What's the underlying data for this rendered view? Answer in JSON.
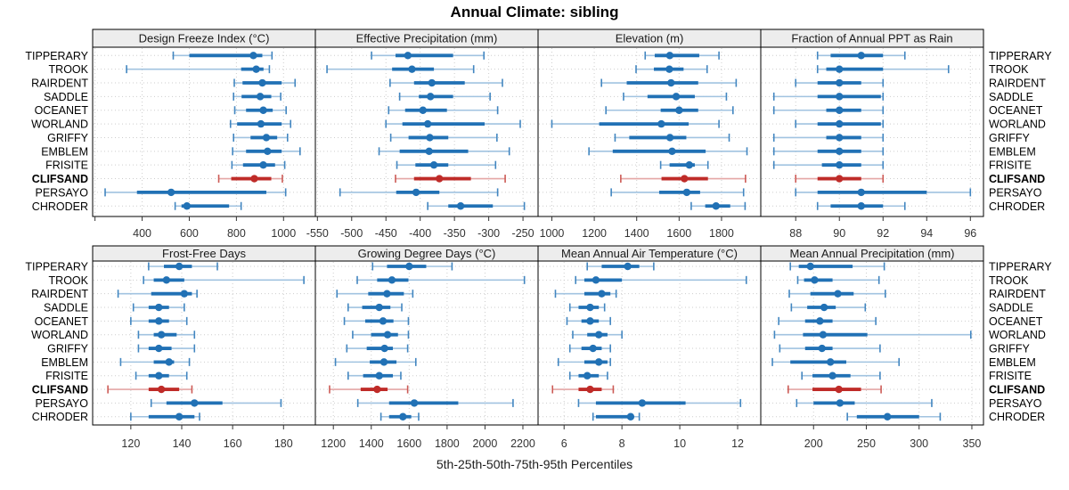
{
  "title": "Annual Climate: sibling",
  "caption": "5th-25th-50th-75th-95th Percentiles",
  "stations": [
    "TIPPERARY",
    "TROOK",
    "RAIRDENT",
    "SADDLE",
    "OCEANET",
    "WORLAND",
    "GRIFFY",
    "EMBLEM",
    "FRISITE",
    "CLIFSAND",
    "PERSAYO",
    "CHRODER"
  ],
  "highlight_station": "CLIFSAND",
  "colors": {
    "series": "#2171b5",
    "series_whisker": "#a1c3e0",
    "series_cap": "#4286c0",
    "highlight": "#bf2b28",
    "highlight_whisker": "#e4a6a5",
    "highlight_cap": "#cc5a55",
    "strip_bg": "#ededed",
    "panel_border": "#000000",
    "grid": "#cdcdcd",
    "tick_text": "#333333",
    "station_text": "#000000"
  },
  "chart_data": {
    "type": "dotplot-percentiles-trellis",
    "percentiles": [
      5,
      25,
      50,
      75,
      95
    ],
    "grid_layout": {
      "rows": 2,
      "cols": 4
    },
    "panels": [
      {
        "title": "Design Freeze Index (°C)",
        "xlim": [
          190,
          1135
        ],
        "ticks": [
          400,
          600,
          800,
          1000
        ],
        "minor_ticks": [
          200
        ],
        "series": [
          [
            532,
            600,
            872,
            910,
            951
          ],
          [
            334,
            820,
            884,
            915,
            940
          ],
          [
            791,
            826,
            910,
            992,
            1049
          ],
          [
            788,
            822,
            901,
            948,
            988
          ],
          [
            793,
            841,
            914,
            954,
            1011
          ],
          [
            775,
            803,
            904,
            992,
            1030
          ],
          [
            788,
            860,
            927,
            973,
            1017
          ],
          [
            784,
            841,
            932,
            992,
            1070
          ],
          [
            781,
            828,
            914,
            964,
            1005
          ],
          [
            725,
            778,
            876,
            948,
            995
          ],
          [
            243,
            378,
            523,
            927,
            1009
          ],
          [
            540,
            567,
            590,
            769,
            820
          ]
        ]
      },
      {
        "title": "Effective Precipitation (mm)",
        "xlim": [
          -553,
          -228
        ],
        "ticks": [
          -550,
          -500,
          -450,
          -400,
          -350,
          -300,
          -250
        ],
        "minor_ticks": [],
        "series": [
          [
            -471,
            -436,
            -418,
            -352,
            -307
          ],
          [
            -536,
            -441,
            -412,
            -380,
            -322
          ],
          [
            -444,
            -409,
            -383,
            -335,
            -280
          ],
          [
            -430,
            -402,
            -385,
            -352,
            -298
          ],
          [
            -446,
            -422,
            -396,
            -361,
            -287
          ],
          [
            -450,
            -426,
            -389,
            -306,
            -254
          ],
          [
            -443,
            -417,
            -386,
            -359,
            -288
          ],
          [
            -460,
            -430,
            -387,
            -330,
            -270
          ],
          [
            -434,
            -407,
            -380,
            -359,
            -290
          ],
          [
            -436,
            -409,
            -372,
            -326,
            -276
          ],
          [
            -517,
            -435,
            -406,
            -372,
            -287
          ],
          [
            -389,
            -359,
            -341,
            -294,
            -248
          ]
        ]
      },
      {
        "title": "Elevation (m)",
        "xlim": [
          935,
          1985
        ],
        "ticks": [
          1000,
          1200,
          1400,
          1600,
          1800
        ],
        "minor_ticks": [],
        "series": [
          [
            1440,
            1485,
            1556,
            1695,
            1788
          ],
          [
            1397,
            1481,
            1554,
            1621,
            1732
          ],
          [
            1234,
            1353,
            1562,
            1690,
            1869
          ],
          [
            1338,
            1451,
            1586,
            1674,
            1823
          ],
          [
            1255,
            1513,
            1600,
            1690,
            1854
          ],
          [
            1000,
            1223,
            1516,
            1645,
            1788
          ],
          [
            1298,
            1365,
            1557,
            1634,
            1836
          ],
          [
            1175,
            1287,
            1567,
            1725,
            1920
          ],
          [
            1513,
            1555,
            1648,
            1674,
            1736
          ],
          [
            1325,
            1517,
            1625,
            1736,
            1913
          ],
          [
            1280,
            1506,
            1636,
            1699,
            1904
          ],
          [
            1657,
            1723,
            1774,
            1841,
            1911
          ]
        ]
      },
      {
        "title": "Fraction of Annual PPT as Rain",
        "xlim": [
          86.4,
          96.6
        ],
        "ticks": [
          88,
          90,
          92,
          94,
          96
        ],
        "minor_ticks": [],
        "series": [
          [
            89.0,
            89.6,
            91.0,
            92.0,
            93.0
          ],
          [
            89.0,
            89.4,
            90.0,
            92.0,
            95.0
          ],
          [
            88.0,
            89.0,
            90.0,
            91.0,
            92.0
          ],
          [
            87.0,
            89.0,
            90.0,
            91.9,
            92.0
          ],
          [
            87.0,
            89.4,
            90.0,
            91.0,
            92.0
          ],
          [
            88.0,
            89.0,
            90.0,
            91.9,
            92.0
          ],
          [
            87.0,
            89.4,
            90.0,
            91.0,
            92.0
          ],
          [
            87.0,
            89.0,
            90.0,
            91.0,
            92.0
          ],
          [
            87.0,
            89.2,
            90.0,
            91.0,
            92.0
          ],
          [
            88.0,
            89.0,
            90.0,
            91.0,
            92.0
          ],
          [
            88.0,
            89.0,
            91.0,
            94.0,
            96.0
          ],
          [
            89.0,
            89.6,
            91.0,
            92.0,
            93.0
          ]
        ]
      },
      {
        "title": "Frost-Free Days",
        "xlim": [
          105,
          192.5
        ],
        "ticks": [
          120,
          140,
          160,
          180
        ],
        "minor_ticks": [],
        "series": [
          [
            127,
            133,
            139,
            144,
            154
          ],
          [
            125,
            129,
            134,
            141,
            188
          ],
          [
            115,
            128,
            141,
            144,
            146
          ],
          [
            121,
            127,
            131,
            135,
            141
          ],
          [
            120,
            127,
            131,
            135,
            142
          ],
          [
            123,
            129,
            132,
            138,
            145
          ],
          [
            123,
            127,
            131,
            136,
            145
          ],
          [
            116,
            129,
            135,
            137,
            143
          ],
          [
            122,
            127,
            131,
            135,
            142
          ],
          [
            111,
            127,
            132,
            139,
            144
          ],
          [
            128,
            134,
            145,
            156,
            179
          ],
          [
            120,
            127,
            139,
            145,
            147
          ]
        ]
      },
      {
        "title": "Growing Degree Days (°C)",
        "xlim": [
          1105,
          2280
        ],
        "ticks": [
          1200,
          1400,
          1600,
          1800,
          2000,
          2200
        ],
        "minor_ticks": [],
        "series": [
          [
            1407,
            1483,
            1600,
            1690,
            1826
          ],
          [
            1326,
            1431,
            1509,
            1596,
            2208
          ],
          [
            1219,
            1384,
            1483,
            1572,
            1619
          ],
          [
            1278,
            1352,
            1442,
            1501,
            1561
          ],
          [
            1258,
            1368,
            1462,
            1517,
            1596
          ],
          [
            1302,
            1399,
            1486,
            1541,
            1596
          ],
          [
            1271,
            1376,
            1470,
            1514,
            1592
          ],
          [
            1211,
            1392,
            1467,
            1533,
            1635
          ],
          [
            1278,
            1357,
            1442,
            1514,
            1556
          ],
          [
            1180,
            1344,
            1431,
            1486,
            1592
          ],
          [
            1329,
            1494,
            1627,
            1859,
            2148
          ],
          [
            1451,
            1494,
            1567,
            1611,
            1650
          ]
        ]
      },
      {
        "title": "Mean Annual Air Temperature (°C)",
        "xlim": [
          5.1,
          12.8
        ],
        "ticks": [
          6,
          8,
          10,
          12
        ],
        "minor_ticks": [],
        "series": [
          [
            6.8,
            7.3,
            8.2,
            8.6,
            9.1
          ],
          [
            6.4,
            6.7,
            7.1,
            8.0,
            12.3
          ],
          [
            5.7,
            6.7,
            7.3,
            7.6,
            7.8
          ],
          [
            6.2,
            6.5,
            6.9,
            7.2,
            7.4
          ],
          [
            6.1,
            6.6,
            6.9,
            7.2,
            7.6
          ],
          [
            6.3,
            6.8,
            7.2,
            7.5,
            8.0
          ],
          [
            6.2,
            6.6,
            7.0,
            7.3,
            7.6
          ],
          [
            5.8,
            6.7,
            7.2,
            7.5,
            7.6
          ],
          [
            6.2,
            6.5,
            6.8,
            7.2,
            7.5
          ],
          [
            5.6,
            6.5,
            6.9,
            7.3,
            7.7
          ],
          [
            6.5,
            7.1,
            8.7,
            10.2,
            12.1
          ],
          [
            7.0,
            7.1,
            8.3,
            8.4,
            8.6
          ]
        ]
      },
      {
        "title": "Mean Annual Precipitation (mm)",
        "xlim": [
          150,
          361
        ],
        "ticks": [
          200,
          250,
          300,
          350
        ],
        "minor_ticks": [],
        "series": [
          [
            178,
            186,
            197,
            237,
            267
          ],
          [
            185,
            191,
            201,
            218,
            262
          ],
          [
            177,
            197,
            223,
            238,
            268
          ],
          [
            179,
            194,
            210,
            221,
            249
          ],
          [
            167,
            192,
            206,
            218,
            259
          ],
          [
            163,
            190,
            209,
            251,
            349
          ],
          [
            168,
            192,
            208,
            218,
            263
          ],
          [
            161,
            178,
            216,
            231,
            281
          ],
          [
            189,
            199,
            218,
            235,
            263
          ],
          [
            176,
            199,
            224,
            245,
            264
          ],
          [
            184,
            200,
            225,
            239,
            312
          ],
          [
            232,
            241,
            270,
            300,
            320
          ]
        ]
      }
    ]
  }
}
